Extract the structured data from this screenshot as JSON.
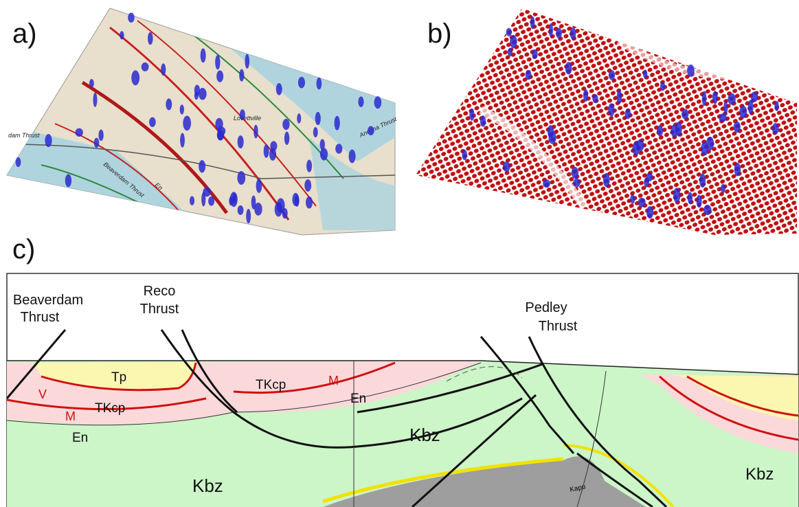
{
  "panels": [
    {
      "label": "a)",
      "map_labels": [
        "dam Thrust",
        "Lovettville",
        "Beaverdam Thrust",
        "Ancona Thrust",
        "En"
      ]
    },
    {
      "label": "b)"
    },
    {
      "label": "c)",
      "faults": [
        {
          "line1": "Beaverdam",
          "line2": "Thrust"
        },
        {
          "line1": "Reco",
          "line2": "Thrust"
        },
        {
          "line1": "Pedley",
          "line2": "Thrust"
        }
      ],
      "units": {
        "tp": "Tp",
        "tkcp": "TKcp",
        "v": "V",
        "m": "M",
        "en": "En",
        "kbz": "Kbz",
        "kapu": "Kapu"
      }
    }
  ]
}
